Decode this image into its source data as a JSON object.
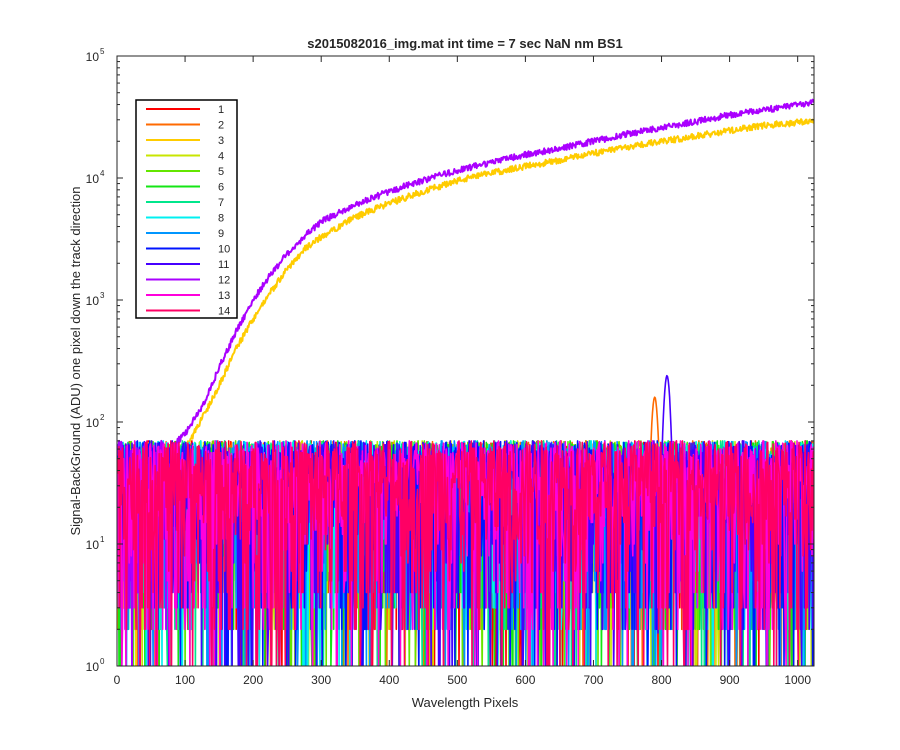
{
  "chart_data": {
    "type": "line",
    "title": "s2015082016_img.mat int time = 7 sec  NaN nm BS1",
    "xlabel": "Wavelength Pixels",
    "ylabel": "Signal-BackGround (ADU) one pixel down the track direction",
    "xlim": [
      0,
      1024
    ],
    "ylim": [
      1,
      100000
    ],
    "yscale": "log",
    "x_ticks": [
      "0",
      "100",
      "200",
      "300",
      "400",
      "500",
      "600",
      "700",
      "800",
      "900",
      "1000"
    ],
    "y_ticks": [
      {
        "base": "10",
        "exp": "0"
      },
      {
        "base": "10",
        "exp": "1"
      },
      {
        "base": "10",
        "exp": "2"
      },
      {
        "base": "10",
        "exp": "3"
      },
      {
        "base": "10",
        "exp": "4"
      },
      {
        "base": "10",
        "exp": "5"
      }
    ],
    "grid": false,
    "legend_position": "top-left",
    "series": [
      {
        "name": "1",
        "color": "#ff0000",
        "kind": "noise"
      },
      {
        "name": "2",
        "color": "#ff6a00",
        "kind": "noise",
        "peak": {
          "x": 790,
          "y": 160
        }
      },
      {
        "name": "3",
        "color": "#ffcc00",
        "kind": "signal",
        "points": [
          [
            60,
            40
          ],
          [
            100,
            60
          ],
          [
            130,
            120
          ],
          [
            150,
            200
          ],
          [
            175,
            400
          ],
          [
            200,
            700
          ],
          [
            225,
            1150
          ],
          [
            250,
            1800
          ],
          [
            275,
            2600
          ],
          [
            300,
            3300
          ],
          [
            350,
            4800
          ],
          [
            400,
            6200
          ],
          [
            450,
            7800
          ],
          [
            500,
            9500
          ],
          [
            550,
            11000
          ],
          [
            600,
            12500
          ],
          [
            650,
            14000
          ],
          [
            700,
            16000
          ],
          [
            750,
            18000
          ],
          [
            800,
            20000
          ],
          [
            850,
            22000
          ],
          [
            900,
            24500
          ],
          [
            950,
            27000
          ],
          [
            1000,
            28500
          ],
          [
            1024,
            29500
          ]
        ]
      },
      {
        "name": "4",
        "color": "#c8e600",
        "kind": "noise"
      },
      {
        "name": "5",
        "color": "#64e600",
        "kind": "noise"
      },
      {
        "name": "6",
        "color": "#14e614",
        "kind": "noise"
      },
      {
        "name": "7",
        "color": "#00e68c",
        "kind": "noise"
      },
      {
        "name": "8",
        "color": "#00f0f0",
        "kind": "noise"
      },
      {
        "name": "9",
        "color": "#0096ff",
        "kind": "noise"
      },
      {
        "name": "10",
        "color": "#0014ff",
        "kind": "noise"
      },
      {
        "name": "11",
        "color": "#4600ff",
        "kind": "noise",
        "peak": {
          "x": 808,
          "y": 240
        }
      },
      {
        "name": "12",
        "color": "#aa00ff",
        "kind": "signal",
        "points": [
          [
            60,
            50
          ],
          [
            100,
            80
          ],
          [
            130,
            150
          ],
          [
            150,
            280
          ],
          [
            175,
            550
          ],
          [
            200,
            1000
          ],
          [
            225,
            1600
          ],
          [
            250,
            2400
          ],
          [
            275,
            3300
          ],
          [
            300,
            4400
          ],
          [
            350,
            6000
          ],
          [
            400,
            7800
          ],
          [
            450,
            9600
          ],
          [
            500,
            11500
          ],
          [
            550,
            13500
          ],
          [
            600,
            15500
          ],
          [
            650,
            17500
          ],
          [
            700,
            20000
          ],
          [
            750,
            23000
          ],
          [
            800,
            26000
          ],
          [
            850,
            29000
          ],
          [
            900,
            33000
          ],
          [
            950,
            36000
          ],
          [
            1000,
            40000
          ],
          [
            1024,
            42000
          ]
        ]
      },
      {
        "name": "13",
        "color": "#ff00dc",
        "kind": "noise"
      },
      {
        "name": "14",
        "color": "#ff0064",
        "kind": "noise"
      }
    ]
  }
}
